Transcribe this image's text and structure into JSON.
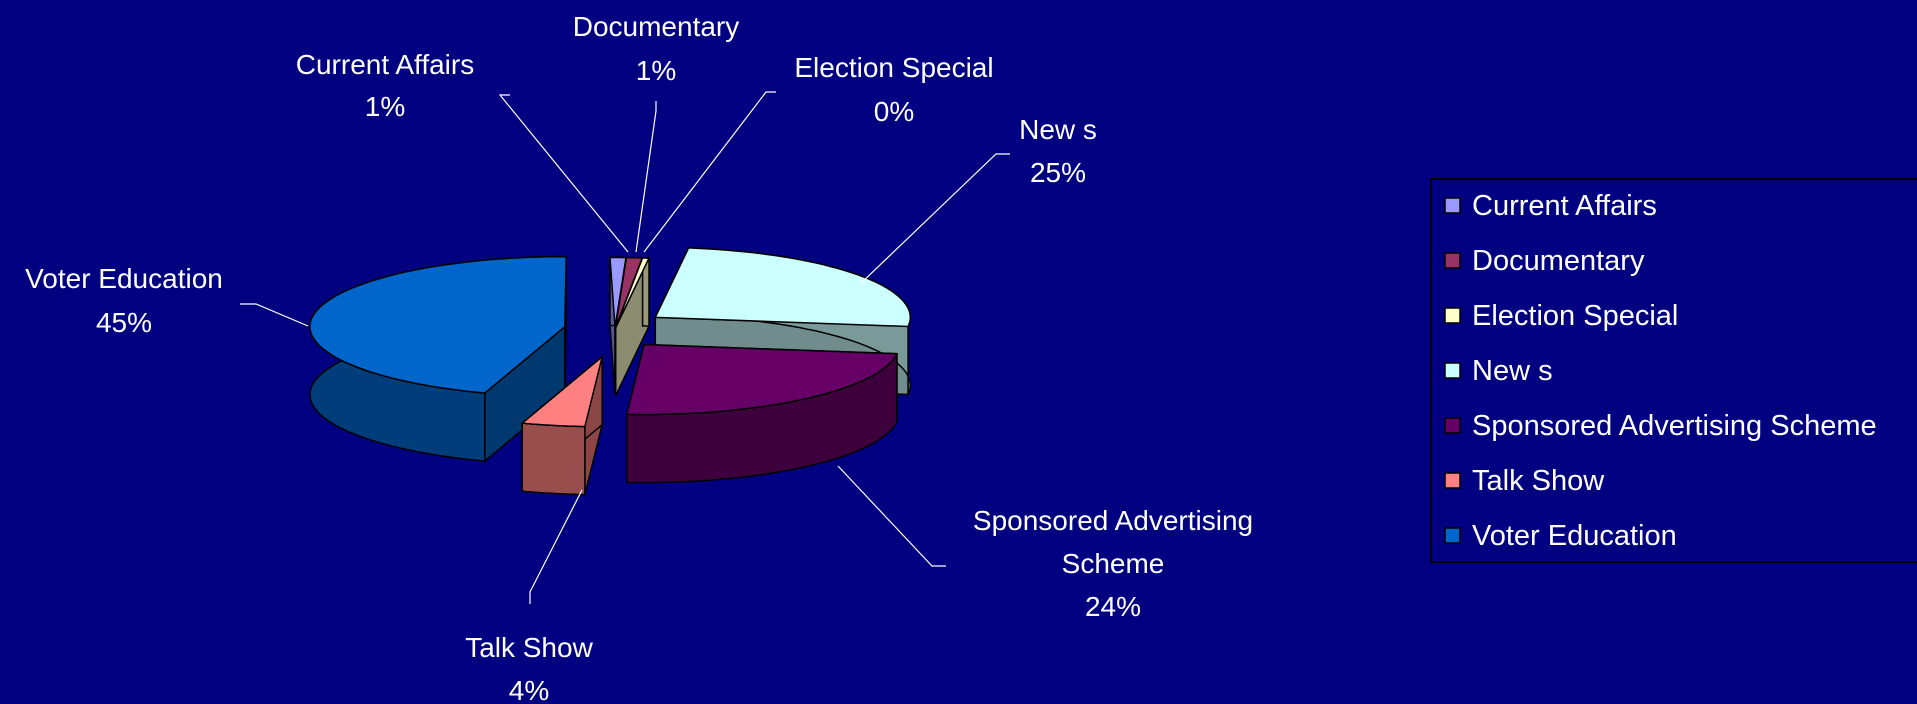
{
  "chart_data": {
    "type": "pie",
    "style": "3d-exploded",
    "title": "",
    "legend_position": "right",
    "slices": [
      {
        "name": "Current Affairs",
        "value": 1,
        "label": "1%",
        "color": "#9999ff"
      },
      {
        "name": "Documentary",
        "value": 1,
        "label": "1%",
        "color": "#993366"
      },
      {
        "name": "Election Special",
        "value": 0,
        "label": "0%",
        "color": "#ffffcc"
      },
      {
        "name": "New s",
        "value": 25,
        "label": "25%",
        "color": "#ccffff"
      },
      {
        "name": "Sponsored Advertising Scheme",
        "value": 24,
        "label": "24%",
        "color": "#660066"
      },
      {
        "name": "Talk Show",
        "value": 4,
        "label": "4%",
        "color": "#ff8080"
      },
      {
        "name": "Voter Education",
        "value": 45,
        "label": "45%",
        "color": "#0066cc"
      }
    ]
  }
}
